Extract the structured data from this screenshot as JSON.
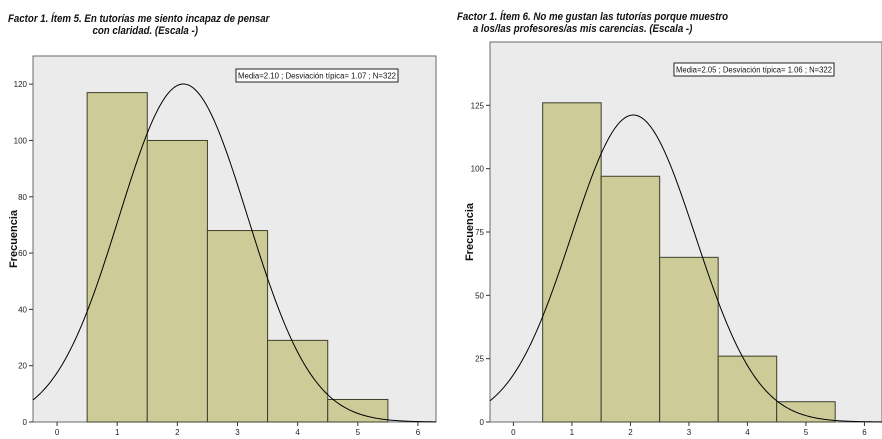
{
  "colors": {
    "plot_background": "#ebebeb",
    "bar_fill": "#cdcb98",
    "bar_stroke": "#3f3f2a",
    "curve": "#000000"
  },
  "chart_data": [
    {
      "type": "bar",
      "title_lines": [
        "Factor 1. Ítem 5. En tutorías me siento incapaz de pensar",
        "con claridad. (Escala -)"
      ],
      "xlabel": "",
      "ylabel": "Frecuencia",
      "stats_label": "Media=2.10 ; Desviación típica= 1.07 ; N=322",
      "mean": 2.1,
      "sd": 1.07,
      "n": 322,
      "xlim": [
        -0.4,
        6.3
      ],
      "ylim": [
        0,
        130
      ],
      "xticks": [
        0,
        1,
        2,
        3,
        4,
        5,
        6
      ],
      "yticks": [
        0,
        20,
        40,
        60,
        80,
        100,
        120
      ],
      "bins": [
        1,
        2,
        3,
        4,
        5
      ],
      "values": [
        117,
        100,
        68,
        29,
        8
      ],
      "grid": false,
      "normal_curve": true
    },
    {
      "type": "bar",
      "title_lines": [
        "Factor 1. Ítem 6. No me gustan las tutorías  porque muestro",
        "a los/las profesores/as mis carencias. (Escala -)"
      ],
      "xlabel": "",
      "ylabel": "Frecuencia",
      "stats_label": "Media=2.05 ; Desviación típica= 1.06 ; N=322",
      "mean": 2.05,
      "sd": 1.06,
      "n": 322,
      "xlim": [
        -0.4,
        6.3
      ],
      "ylim": [
        0,
        150
      ],
      "xticks": [
        0,
        1,
        2,
        3,
        4,
        5,
        6
      ],
      "yticks": [
        0,
        25,
        50,
        75,
        100,
        125
      ],
      "bins": [
        1,
        2,
        3,
        4,
        5
      ],
      "values": [
        126,
        97,
        65,
        26,
        8
      ],
      "grid": false,
      "normal_curve": true
    }
  ]
}
